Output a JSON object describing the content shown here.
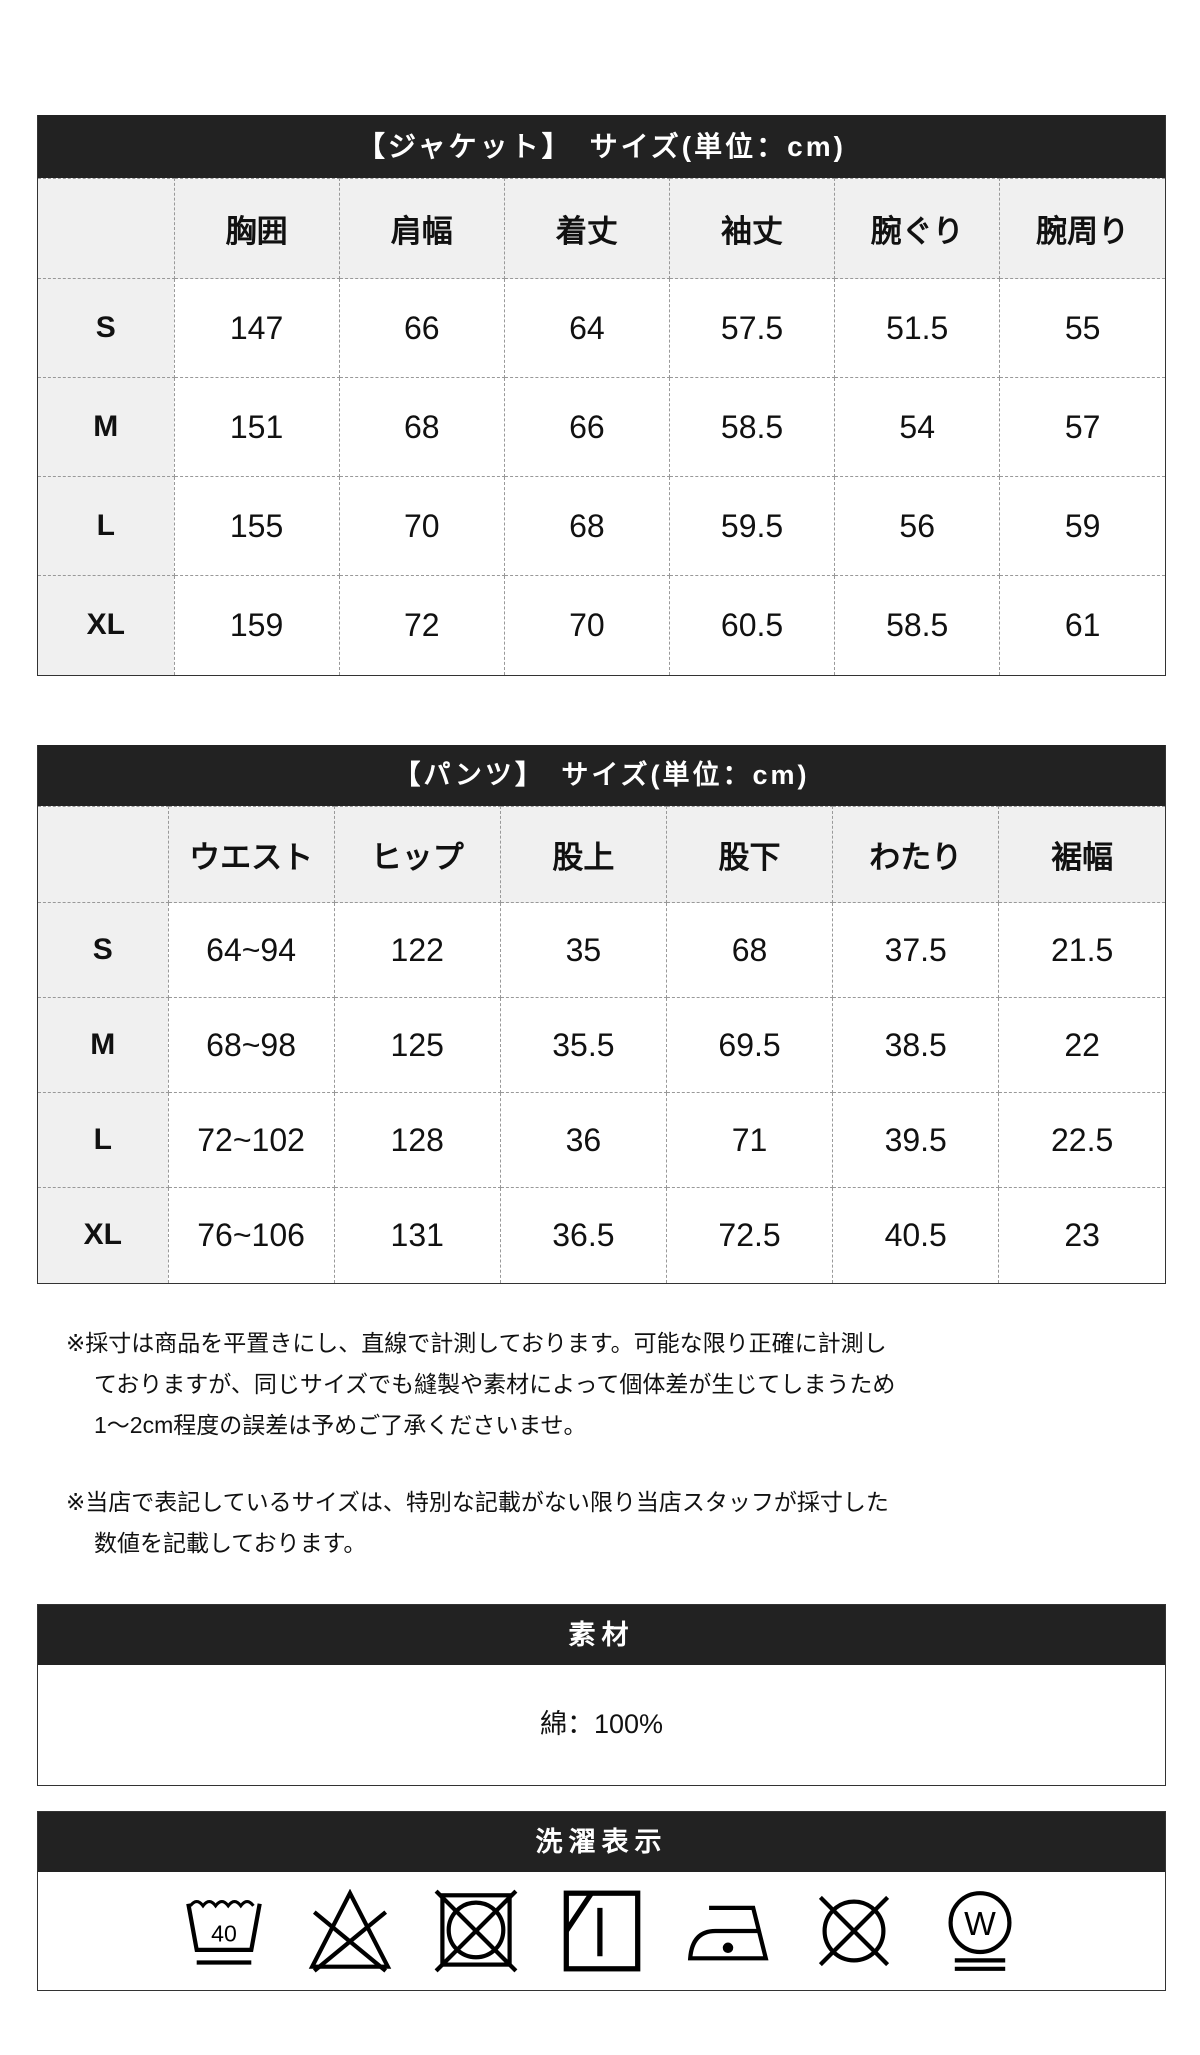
{
  "jacket": {
    "title": "【ジャケット】　サイズ(単位：cm)",
    "headers": [
      "",
      "胸囲",
      "肩幅",
      "着丈",
      "袖丈",
      "腕ぐり",
      "腕周り"
    ],
    "rows": [
      [
        "S",
        "147",
        "66",
        "64",
        "57.5",
        "51.5",
        "55"
      ],
      [
        "M",
        "151",
        "68",
        "66",
        "58.5",
        "54",
        "57"
      ],
      [
        "L",
        "155",
        "70",
        "68",
        "59.5",
        "56",
        "59"
      ],
      [
        "XL",
        "159",
        "72",
        "70",
        "60.5",
        "58.5",
        "61"
      ]
    ]
  },
  "pants": {
    "title": "【パンツ】　サイズ(単位：cm)",
    "headers": [
      "",
      "ウエスト",
      "ヒップ",
      "股上",
      "股下",
      "わたり",
      "裾幅"
    ],
    "rows": [
      [
        "S",
        "64~94",
        "122",
        "35",
        "68",
        "37.5",
        "21.5"
      ],
      [
        "M",
        "68~98",
        "125",
        "35.5",
        "69.5",
        "38.5",
        "22"
      ],
      [
        "L",
        "72~102",
        "128",
        "36",
        "71",
        "39.5",
        "22.5"
      ],
      [
        "XL",
        "76~106",
        "131",
        "36.5",
        "72.5",
        "40.5",
        "23"
      ]
    ]
  },
  "notes": [
    "※採寸は商品を平置きにし、直線で計測しております。可能な限り正確に計測し",
    "ておりますが、同じサイズでも縫製や素材によって個体差が生じてしまうため",
    "1〜2cm程度の誤差は予めご了承くださいませ。",
    "※当店で表記しているサイズは、特別な記載がない限り当店スタッフが採寸した",
    "数値を記載しております。"
  ],
  "material": {
    "title": "素材",
    "value": "綿：100%"
  },
  "care": {
    "title": "洗濯表示",
    "wash_temp": "40",
    "icons": [
      "wash-40-icon",
      "no-bleach-icon",
      "no-tumble-dry-icon",
      "line-dry-shade-icon",
      "iron-low-icon",
      "no-dry-clean-icon",
      "wet-clean-icon"
    ]
  }
}
